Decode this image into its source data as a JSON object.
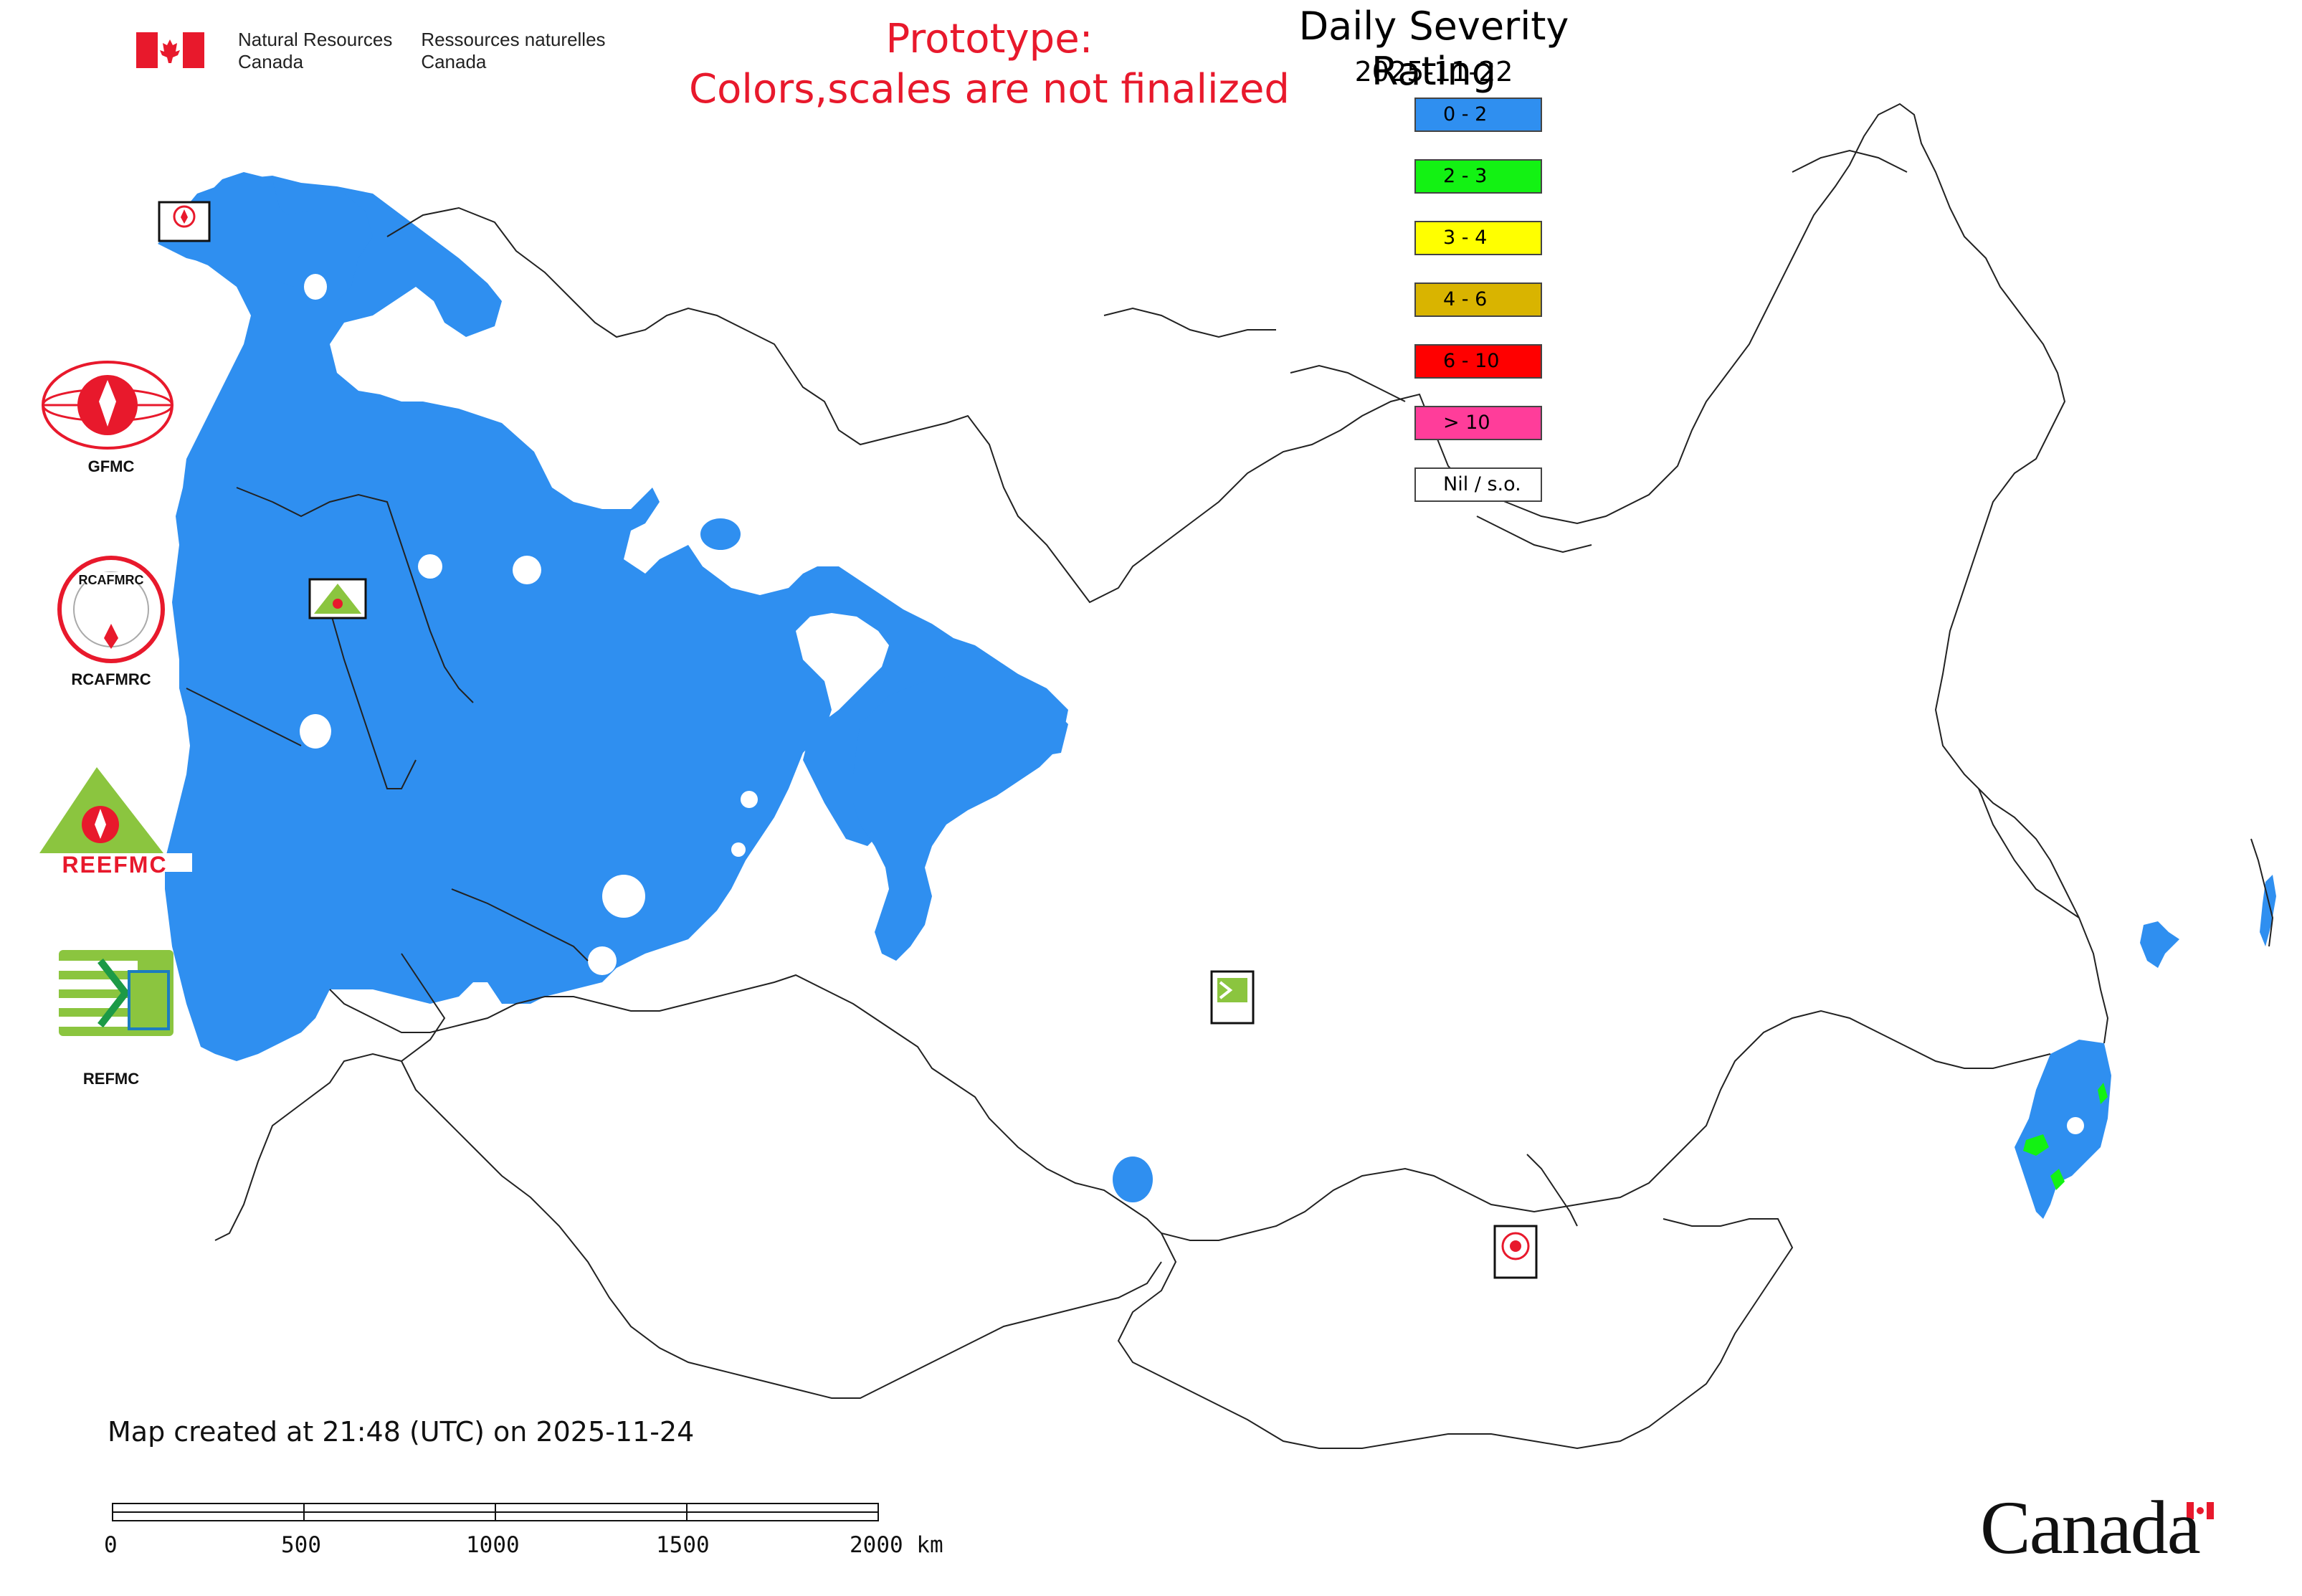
{
  "header": {
    "agency_en_line1": "Natural Resources",
    "agency_en_line2": "Canada",
    "agency_fr_line1": "Ressources naturelles",
    "agency_fr_line2": "Canada",
    "prototype_line1": "Prototype:",
    "prototype_line2": "Colors,scales are not finalized"
  },
  "legend": {
    "title": "Daily Severity Rating",
    "date": "2025-11-22",
    "items": [
      {
        "label": "0 - 2",
        "color": "#2f8ff0"
      },
      {
        "label": "2 - 3",
        "color": "#13f213"
      },
      {
        "label": "3 - 4",
        "color": "#ffff00"
      },
      {
        "label": "4 - 6",
        "color": "#d9b400"
      },
      {
        "label": "6 - 10",
        "color": "#ff0000"
      },
      {
        "label": "> 10",
        "color": "#ff3d9a"
      },
      {
        "label": "Nil / s.o.",
        "color": "#ffffff"
      }
    ]
  },
  "logos": {
    "gfmc": "GFMC",
    "rcafmrc": "RCAFMRC",
    "reefmc": "REEFMC",
    "refmc": "REFMC",
    "reefmc_badge": "REEFMC",
    "gfmc_small": "GFMC",
    "refmc_small": "REFMC",
    "rcafmrc_small": "RCAFMRC"
  },
  "footer": {
    "created": "Map created at 21:48 (UTC) on 2025-11-24",
    "scale_labels": [
      "0",
      "500",
      "1000",
      "1500",
      "2000 km"
    ]
  },
  "wordmark": "Canada",
  "colors": {
    "boundary": "#222222",
    "dsr_low": "#2f8ff0",
    "dsr_23": "#13f213",
    "red_text": "#e8192c"
  }
}
